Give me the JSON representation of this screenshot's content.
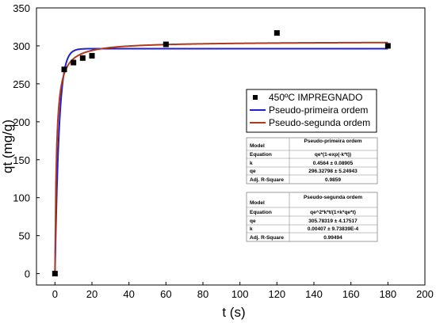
{
  "chart_data": {
    "type": "scatter",
    "xlabel": "t (s)",
    "ylabel": "qt (mg/g)",
    "xlim": [
      -10,
      200
    ],
    "ylim": [
      -15,
      350
    ],
    "x_ticks": [
      "0",
      "20",
      "40",
      "60",
      "80",
      "100",
      "120",
      "140",
      "160",
      "180",
      "200"
    ],
    "y_ticks": [
      "0",
      "50",
      "100",
      "150",
      "200",
      "250",
      "300",
      "350"
    ],
    "grid": false,
    "legend_position": "right",
    "series": [
      {
        "name": "450ºC IMPREGNADO",
        "kind": "points",
        "color": "#000000",
        "x": [
          0,
          5,
          10,
          15,
          20,
          60,
          120,
          180
        ],
        "y": [
          0,
          269,
          278,
          284,
          287,
          302,
          317,
          300
        ]
      },
      {
        "name": "Pseudo-primeira ordem",
        "kind": "fit",
        "color": "#1f1fd6",
        "model": "pfo",
        "qe": 296.32798,
        "k": 0.4564
      },
      {
        "name": "Pseudo-segunda ordem",
        "kind": "fit",
        "color": "#b03a1e",
        "model": "pso",
        "qe": 305.78319,
        "k": 0.00407
      }
    ],
    "tables": [
      {
        "header": [
          "Model",
          "Pseudo-primeira ordem"
        ],
        "rows": [
          [
            "Equation",
            "qe*(1-exp(-k*t))"
          ],
          [
            "k",
            "0.4564 ± 0.08905"
          ],
          [
            "qe",
            "296.32798 ± 5.24943"
          ],
          [
            "Adj. R-Square",
            "0.9859"
          ]
        ]
      },
      {
        "header": [
          "Model",
          "Pseudo-segunda ordem"
        ],
        "rows": [
          [
            "Equation",
            "qe^2*k*t/(1+k*qe*t)"
          ],
          [
            "qe",
            "305.78319 ± 4.17517"
          ],
          [
            "k",
            "0.00407 ± 9.73839E-4"
          ],
          [
            "Adj. R-Square",
            "0.99494"
          ]
        ]
      }
    ]
  }
}
